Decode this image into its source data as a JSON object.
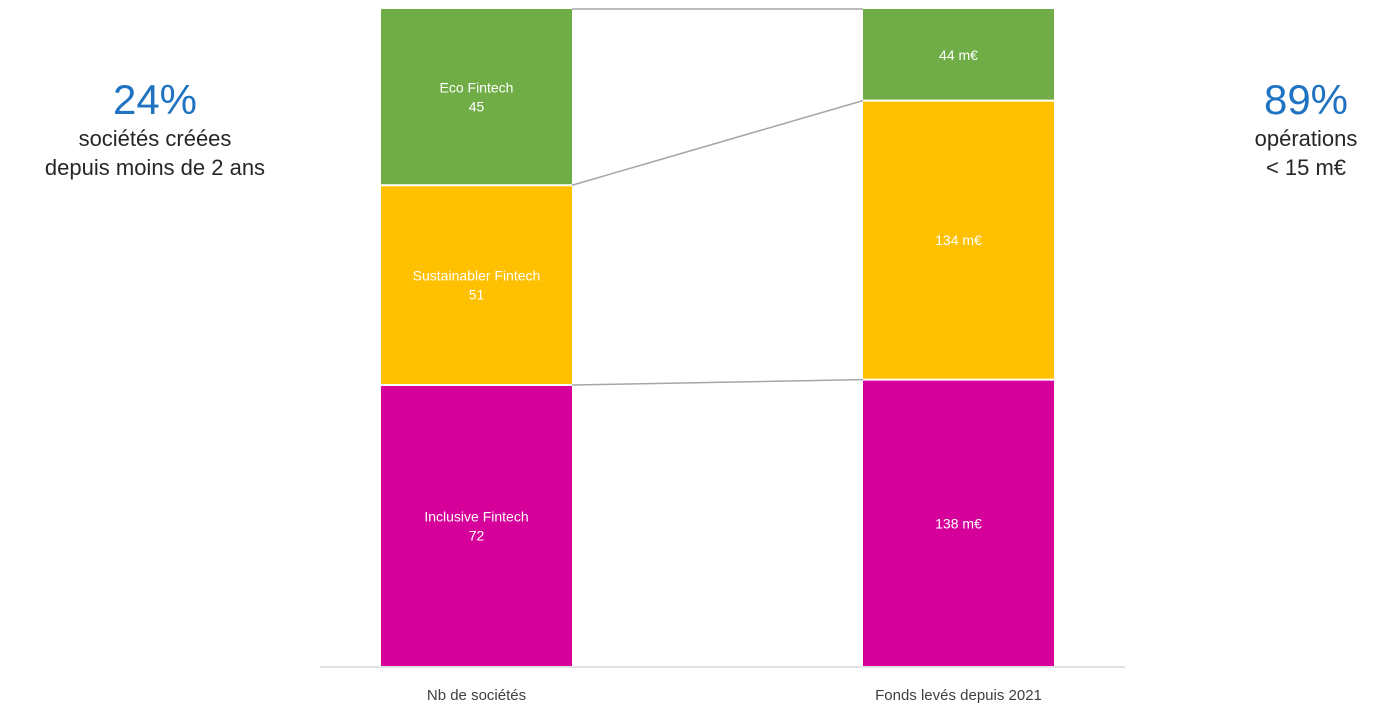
{
  "kpis": {
    "left": {
      "value": "24%",
      "line1": "sociétés créées",
      "line2": "depuis moins de 2 ans"
    },
    "right": {
      "value": "89%",
      "line1": "opérations",
      "line2": "< 15 m€"
    }
  },
  "colors": {
    "accent": "#1f73c1",
    "connector": "#a6a6a6",
    "axis": "#d9d9d9"
  },
  "chart_data": {
    "type": "bar",
    "stacked": "100%",
    "categories": [
      "Nb de sociétés",
      "Fonds levés depuis 2021"
    ],
    "series": [
      {
        "name": "Inclusive Fintech",
        "color": "#d6009a",
        "values": [
          72,
          138
        ],
        "labels": [
          "Inclusive Fintech\n72",
          "138 m€"
        ]
      },
      {
        "name": "Sustainabler Fintech",
        "color": "#ffc000",
        "values": [
          51,
          134
        ],
        "labels": [
          "Sustainabler Fintech\n51",
          "134 m€"
        ]
      },
      {
        "name": "Eco Fintech",
        "color": "#70ad47",
        "values": [
          45,
          44
        ],
        "labels": [
          "Eco Fintech\n45",
          "44 m€"
        ]
      }
    ],
    "series_lines": true,
    "legend": "none",
    "grid": false
  }
}
